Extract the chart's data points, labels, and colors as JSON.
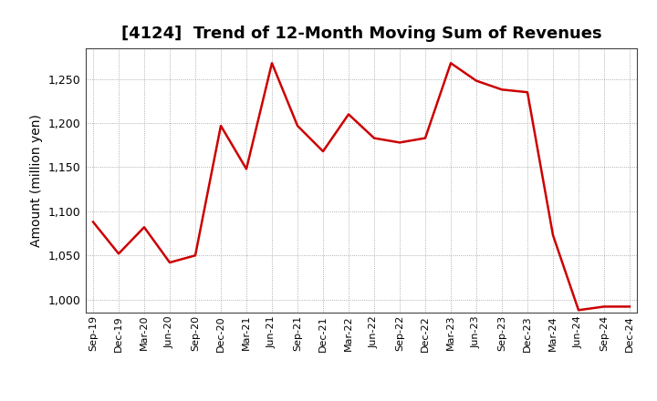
{
  "title": "[4124]  Trend of 12-Month Moving Sum of Revenues",
  "ylabel": "Amount (million yen)",
  "line_color": "#cc0000",
  "line_width": 1.8,
  "background_color": "#ffffff",
  "plot_bg_color": "#ffffff",
  "grid_color": "#999999",
  "ylim": [
    985,
    1285
  ],
  "yticks": [
    1000,
    1050,
    1100,
    1150,
    1200,
    1250
  ],
  "labels": [
    "Sep-19",
    "Dec-19",
    "Mar-20",
    "Jun-20",
    "Sep-20",
    "Dec-20",
    "Mar-21",
    "Jun-21",
    "Sep-21",
    "Dec-21",
    "Mar-22",
    "Jun-22",
    "Sep-22",
    "Dec-22",
    "Mar-23",
    "Jun-23",
    "Sep-23",
    "Dec-23",
    "Mar-24",
    "Jun-24",
    "Sep-24",
    "Dec-24"
  ],
  "values": [
    1088,
    1052,
    1082,
    1042,
    1050,
    1197,
    1148,
    1268,
    1197,
    1168,
    1210,
    1183,
    1178,
    1183,
    1268,
    1248,
    1238,
    1235,
    1073,
    988,
    992,
    992
  ],
  "title_fontsize": 13,
  "ylabel_fontsize": 10,
  "tick_fontsize": 9,
  "xtick_fontsize": 8
}
